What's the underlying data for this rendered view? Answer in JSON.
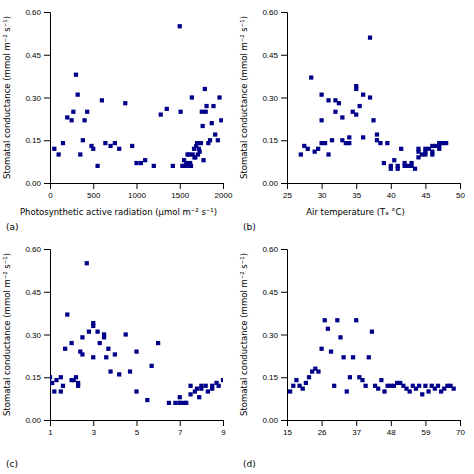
{
  "chart_data": [
    {
      "type": "scatter",
      "title": "(a)",
      "xlabel": "Photosynthetic active radiation (μmol m⁻² s⁻¹)",
      "ylabel": "Stomatal conductance (mmol m⁻² s⁻¹)",
      "color": "#00008B",
      "marker": "square",
      "xlim": [
        0,
        2000
      ],
      "ylim": [
        0,
        0.6
      ],
      "xticks": [
        0,
        500,
        1000,
        1500,
        2000
      ],
      "yticks": [
        {
          "value": 0,
          "label": "0.00"
        },
        0.15,
        {
          "value": 0.3,
          "label": "0.30"
        },
        0.45,
        {
          "value": 0.6,
          "label": "0.60"
        }
      ],
      "x": [
        50,
        100,
        150,
        200,
        250,
        270,
        300,
        320,
        350,
        380,
        400,
        430,
        480,
        500,
        550,
        600,
        640,
        700,
        750,
        800,
        870,
        950,
        1000,
        1050,
        1100,
        1200,
        1280,
        1350,
        1420,
        1500,
        1510,
        1530,
        1550,
        1560,
        1575,
        1590,
        1600,
        1610,
        1620,
        1630,
        1640,
        1650,
        1665,
        1670,
        1680,
        1690,
        1700,
        1710,
        1720,
        1730,
        1745,
        1755,
        1765,
        1775,
        1790,
        1800,
        1810,
        1830,
        1850,
        1870,
        1890,
        1910,
        1940,
        1960,
        1980
      ],
      "values": [
        0.12,
        0.1,
        0.14,
        0.23,
        0.22,
        0.25,
        0.38,
        0.31,
        0.1,
        0.15,
        0.22,
        0.25,
        0.13,
        0.12,
        0.06,
        0.29,
        0.14,
        0.13,
        0.14,
        0.12,
        0.28,
        0.13,
        0.07,
        0.07,
        0.08,
        0.06,
        0.24,
        0.26,
        0.06,
        0.55,
        0.25,
        0.06,
        0.08,
        0.06,
        0.07,
        0.1,
        0.06,
        0.1,
        0.07,
        0.06,
        0.3,
        0.1,
        0.12,
        0.09,
        0.09,
        0.13,
        0.14,
        0.1,
        0.12,
        0.11,
        0.14,
        0.25,
        0.2,
        0.08,
        0.33,
        0.25,
        0.27,
        0.14,
        0.15,
        0.21,
        0.27,
        0.17,
        0.15,
        0.3,
        0.22
      ]
    },
    {
      "type": "scatter",
      "title": "(b)",
      "xlabel": "Air temperature (Tₐ °C)",
      "ylabel": "Stomatal conductance (mmol m⁻² s⁻¹)",
      "color": "#00008B",
      "marker": "square",
      "xlim": [
        25,
        50
      ],
      "ylim": [
        0,
        0.6
      ],
      "xticks": [
        25,
        30,
        35,
        40,
        45,
        50
      ],
      "yticks": [
        {
          "value": 0,
          "label": "0.00"
        },
        0.15,
        {
          "value": 0.3,
          "label": "0.30"
        },
        0.45,
        {
          "value": 0.6,
          "label": "0.60"
        }
      ],
      "x": [
        27,
        27.5,
        28,
        28.5,
        29,
        29.5,
        30,
        30,
        30,
        30.5,
        31,
        31,
        31.5,
        32,
        32,
        32.5,
        33,
        33,
        33.5,
        34,
        34,
        34.5,
        35,
        35,
        35,
        35.5,
        36,
        36,
        37,
        37,
        37.5,
        38,
        38,
        38.5,
        39,
        39.5,
        40,
        40,
        40.5,
        41,
        41,
        41.5,
        42,
        42,
        42.5,
        43,
        43,
        43.5,
        44,
        44,
        44,
        44.5,
        45,
        45,
        45,
        45.5,
        46,
        46,
        46,
        46.5,
        47,
        47,
        47,
        47.5,
        48
      ],
      "values": [
        0.1,
        0.13,
        0.12,
        0.37,
        0.11,
        0.12,
        0.31,
        0.22,
        0.14,
        0.14,
        0.1,
        0.29,
        0.15,
        0.29,
        0.25,
        0.28,
        0.23,
        0.15,
        0.14,
        0.16,
        0.14,
        0.25,
        0.24,
        0.34,
        0.33,
        0.27,
        0.31,
        0.16,
        0.51,
        0.3,
        0.22,
        0.17,
        0.15,
        0.14,
        0.07,
        0.14,
        0.06,
        0.05,
        0.08,
        0.05,
        0.06,
        0.12,
        0.07,
        0.06,
        0.06,
        0.07,
        0.06,
        0.05,
        0.12,
        0.11,
        0.09,
        0.1,
        0.1,
        0.11,
        0.12,
        0.12,
        0.13,
        0.1,
        0.11,
        0.13,
        0.14,
        0.12,
        0.13,
        0.14,
        0.14
      ]
    },
    {
      "type": "scatter",
      "title": "(c)",
      "ylabel": "Stomatal conductance (mmol m⁻² s⁻¹)",
      "color": "#00008B",
      "marker": "square",
      "xlim": [
        1,
        9
      ],
      "ylim": [
        0,
        0.6
      ],
      "xticks": [
        1,
        3,
        5,
        7,
        9
      ],
      "yticks": [
        {
          "value": 0,
          "label": "0.00"
        },
        0.15,
        {
          "value": 0.3,
          "label": "0.30"
        },
        0.45,
        {
          "value": 0.6,
          "label": "0.60"
        }
      ],
      "x": [
        1.0,
        1.1,
        1.2,
        1.3,
        1.5,
        1.5,
        1.6,
        1.7,
        1.8,
        2.0,
        2.0,
        2.1,
        2.2,
        2.3,
        2.3,
        2.4,
        2.5,
        2.5,
        2.7,
        2.8,
        3.0,
        3.0,
        3.0,
        3.2,
        3.3,
        3.5,
        3.5,
        3.6,
        3.7,
        3.8,
        4.0,
        4.2,
        4.5,
        4.7,
        5.0,
        5.0,
        5.5,
        5.7,
        6.0,
        6.5,
        6.8,
        7.0,
        7.0,
        7.0,
        7.2,
        7.3,
        7.5,
        7.5,
        7.7,
        7.8,
        7.9,
        8.0,
        8.0,
        8.2,
        8.3,
        8.5,
        8.5,
        8.7,
        8.8,
        9.0
      ],
      "values": [
        0.15,
        0.13,
        0.1,
        0.14,
        0.15,
        0.1,
        0.12,
        0.25,
        0.37,
        0.27,
        0.14,
        0.14,
        0.15,
        0.12,
        0.13,
        0.24,
        0.29,
        0.23,
        0.55,
        0.31,
        0.34,
        0.33,
        0.22,
        0.31,
        0.27,
        0.3,
        0.29,
        0.22,
        0.25,
        0.17,
        0.23,
        0.16,
        0.3,
        0.17,
        0.1,
        0.24,
        0.07,
        0.19,
        0.27,
        0.06,
        0.06,
        0.08,
        0.06,
        0.06,
        0.06,
        0.06,
        0.12,
        0.09,
        0.1,
        0.11,
        0.08,
        0.12,
        0.11,
        0.12,
        0.1,
        0.12,
        0.11,
        0.13,
        0.12,
        0.14
      ]
    },
    {
      "type": "scatter",
      "title": "(d)",
      "ylabel": "Stomatal conductance (mmol m⁻² s⁻¹)",
      "color": "#00008B",
      "marker": "square",
      "xlim": [
        15,
        70
      ],
      "ylim": [
        0,
        0.6
      ],
      "xticks": [
        15,
        26,
        37,
        48,
        59,
        70
      ],
      "yticks": [
        {
          "value": 0,
          "label": "0.00"
        },
        0.15,
        {
          "value": 0.3,
          "label": "0.30"
        },
        0.45,
        {
          "value": 0.6,
          "label": "0.60"
        }
      ],
      "x": [
        16,
        17,
        18,
        19,
        20,
        21,
        22,
        23,
        24,
        25,
        26,
        27,
        28,
        29,
        30,
        31,
        32,
        33,
        34,
        35,
        36,
        37,
        38,
        39,
        40,
        41,
        42,
        43,
        44,
        45,
        46,
        47,
        48,
        49,
        50,
        51,
        52,
        53,
        54,
        55,
        56,
        57,
        58,
        59,
        60,
        61,
        62,
        63,
        64,
        65,
        66,
        67,
        68
      ],
      "values": [
        0.1,
        0.12,
        0.14,
        0.12,
        0.11,
        0.13,
        0.15,
        0.17,
        0.18,
        0.17,
        0.25,
        0.35,
        0.32,
        0.24,
        0.12,
        0.35,
        0.29,
        0.22,
        0.1,
        0.15,
        0.22,
        0.35,
        0.15,
        0.14,
        0.12,
        0.22,
        0.31,
        0.12,
        0.11,
        0.14,
        0.1,
        0.12,
        0.12,
        0.12,
        0.13,
        0.13,
        0.12,
        0.11,
        0.1,
        0.12,
        0.11,
        0.12,
        0.09,
        0.12,
        0.1,
        0.12,
        0.11,
        0.12,
        0.1,
        0.11,
        0.12,
        0.12,
        0.11
      ]
    }
  ]
}
